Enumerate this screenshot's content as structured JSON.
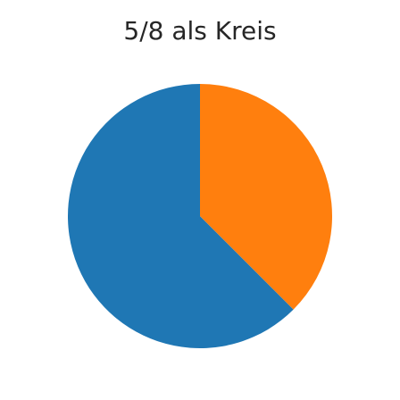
{
  "chart_data": {
    "type": "pie",
    "title": "5/8 als Kreis",
    "start_angle_deg": 90,
    "direction": "counterclockwise",
    "slices": [
      {
        "value": 5,
        "fraction": 0.625,
        "color": "#1f77b4"
      },
      {
        "value": 3,
        "fraction": 0.375,
        "color": "#ff7f0e"
      }
    ],
    "legend": "none",
    "labels": "none"
  }
}
